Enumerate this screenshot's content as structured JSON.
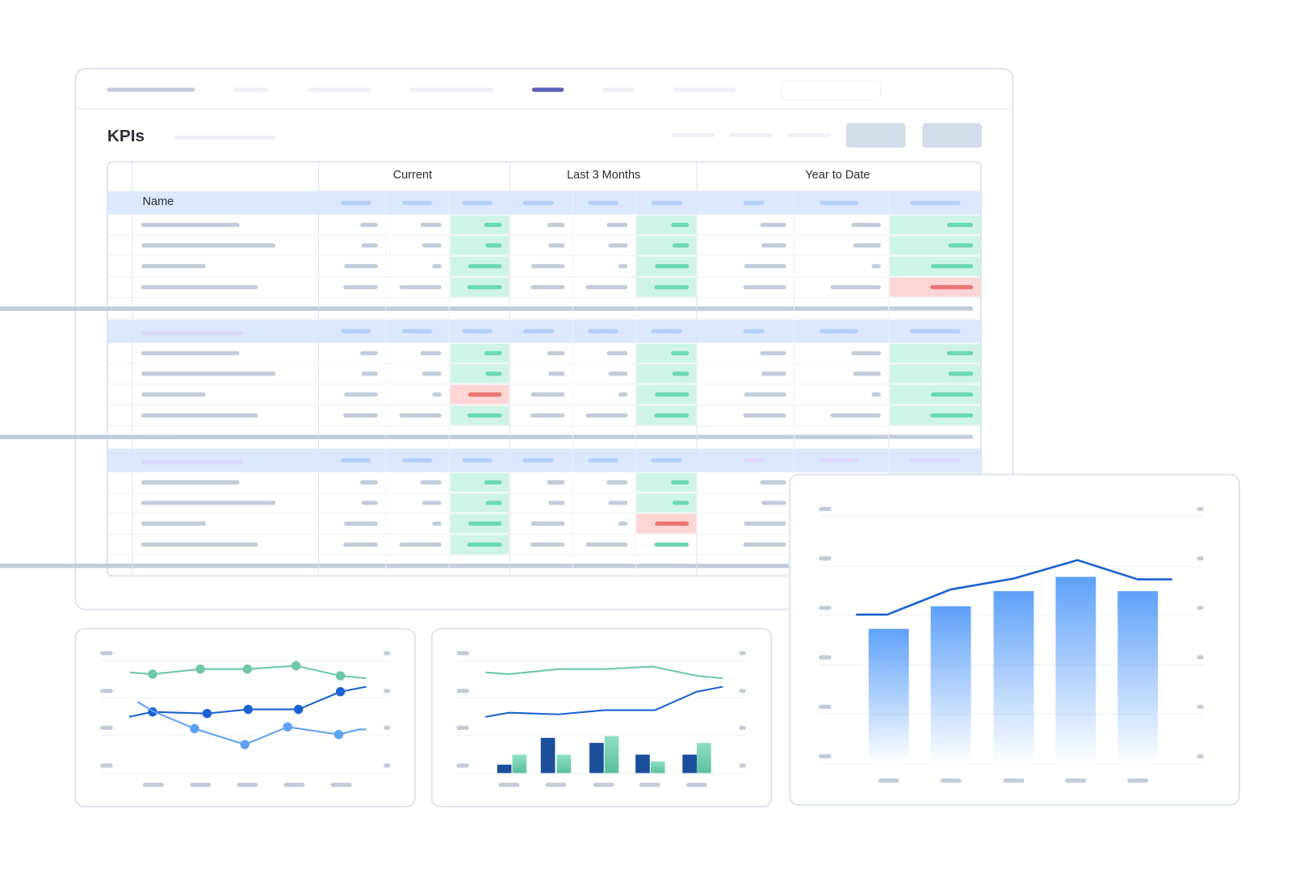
{
  "header": {
    "title": "KPIs"
  },
  "table": {
    "column_groups": [
      "Current",
      "Last 3 Months",
      "Year to Date"
    ],
    "name_header": "Name"
  }
}
